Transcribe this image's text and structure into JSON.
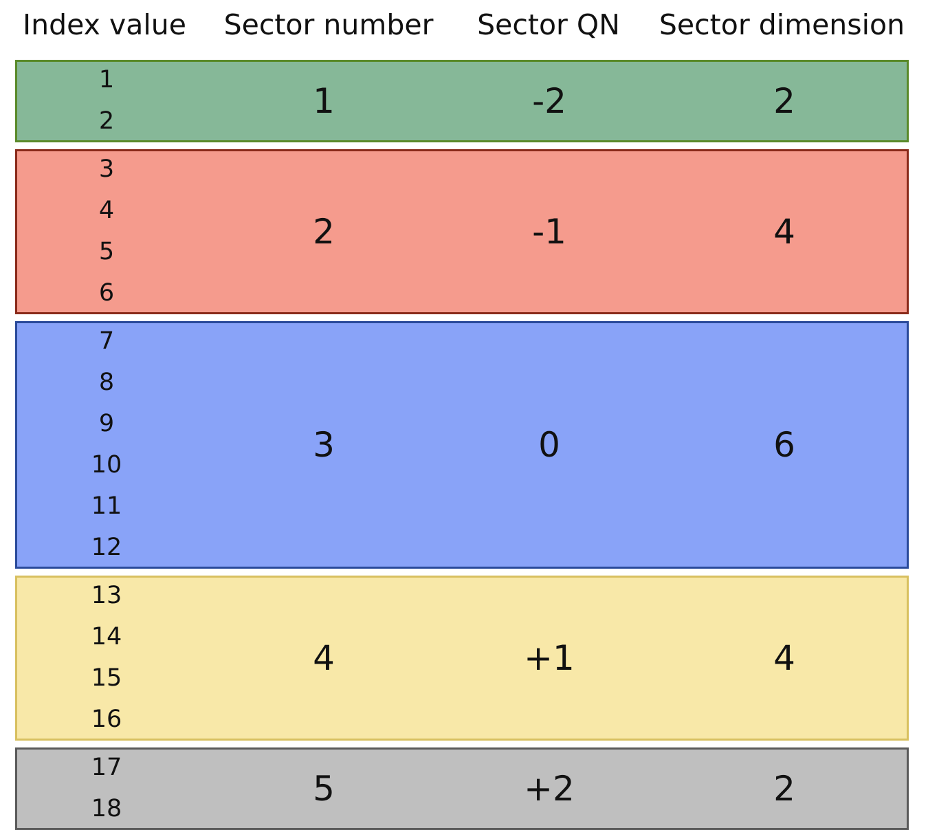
{
  "header": {
    "index_value": "Index value",
    "sector_number": "Sector number",
    "sector_qn": "Sector QN",
    "sector_dimension": "Sector dimension"
  },
  "sectors": [
    {
      "indices": [
        "1",
        "2"
      ],
      "number": "1",
      "qn": "-2",
      "dimension": "2",
      "fill": "#86b898",
      "border": "#5a8a2a"
    },
    {
      "indices": [
        "3",
        "4",
        "5",
        "6"
      ],
      "number": "2",
      "qn": "-1",
      "dimension": "4",
      "fill": "#f59b8d",
      "border": "#8a2a1a"
    },
    {
      "indices": [
        "7",
        "8",
        "9",
        "10",
        "11",
        "12"
      ],
      "number": "3",
      "qn": "0",
      "dimension": "6",
      "fill": "#89a3f8",
      "border": "#2a4a9a"
    },
    {
      "indices": [
        "13",
        "14",
        "15",
        "16"
      ],
      "number": "4",
      "qn": "+1",
      "dimension": "4",
      "fill": "#f8e8a8",
      "border": "#d8c060"
    },
    {
      "indices": [
        "17",
        "18"
      ],
      "number": "5",
      "qn": "+2",
      "dimension": "2",
      "fill": "#bfbfbf",
      "border": "#5a5a5a"
    }
  ]
}
